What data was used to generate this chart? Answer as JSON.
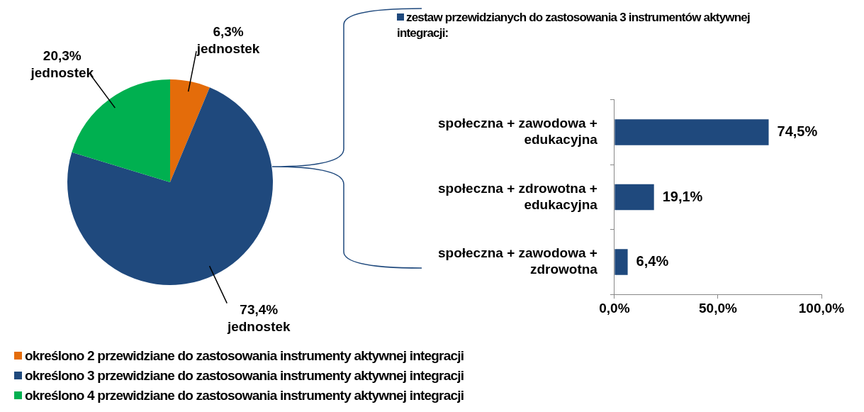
{
  "chart_data": [
    {
      "type": "pie",
      "categories": [
        "określono 2 przewidziane do zastosowania instrumenty aktywnej integracji",
        "określono 3 przewidziane do zastosowania instrumenty aktywnej integracji",
        "określono 4 przewidziane do zastosowania instrumenty aktywnej integracji"
      ],
      "values": [
        6.3,
        73.4,
        20.3
      ],
      "colors": [
        "#e46c0a",
        "#1f497d",
        "#00b050"
      ],
      "value_labels": [
        "6,3% jednostek",
        "73,4% jednostek",
        "20,3% jednostek"
      ],
      "legend": "bottom"
    },
    {
      "type": "bar",
      "orientation": "horizontal",
      "categories": [
        "społeczna + zawodowa + edukacyjna",
        "społeczna + zdrowotna + edukacyjna",
        "społeczna + zawodowa + zdrowotna"
      ],
      "series": [
        {
          "name": "zestaw przewidzianych do zastosowania 3 instrumentów aktywnej integracji:",
          "color": "#1f497d",
          "values": [
            74.5,
            19.1,
            6.4
          ],
          "value_labels": [
            "74,5%",
            "19,1%",
            "6,4%"
          ]
        }
      ],
      "xlim": [
        0,
        100
      ],
      "xticks": [
        {
          "value": 0,
          "label": "0,0%"
        },
        {
          "value": 50,
          "label": "50,0%"
        },
        {
          "value": 100,
          "label": "100,0%"
        }
      ],
      "grid": false,
      "legend": "top left"
    }
  ]
}
